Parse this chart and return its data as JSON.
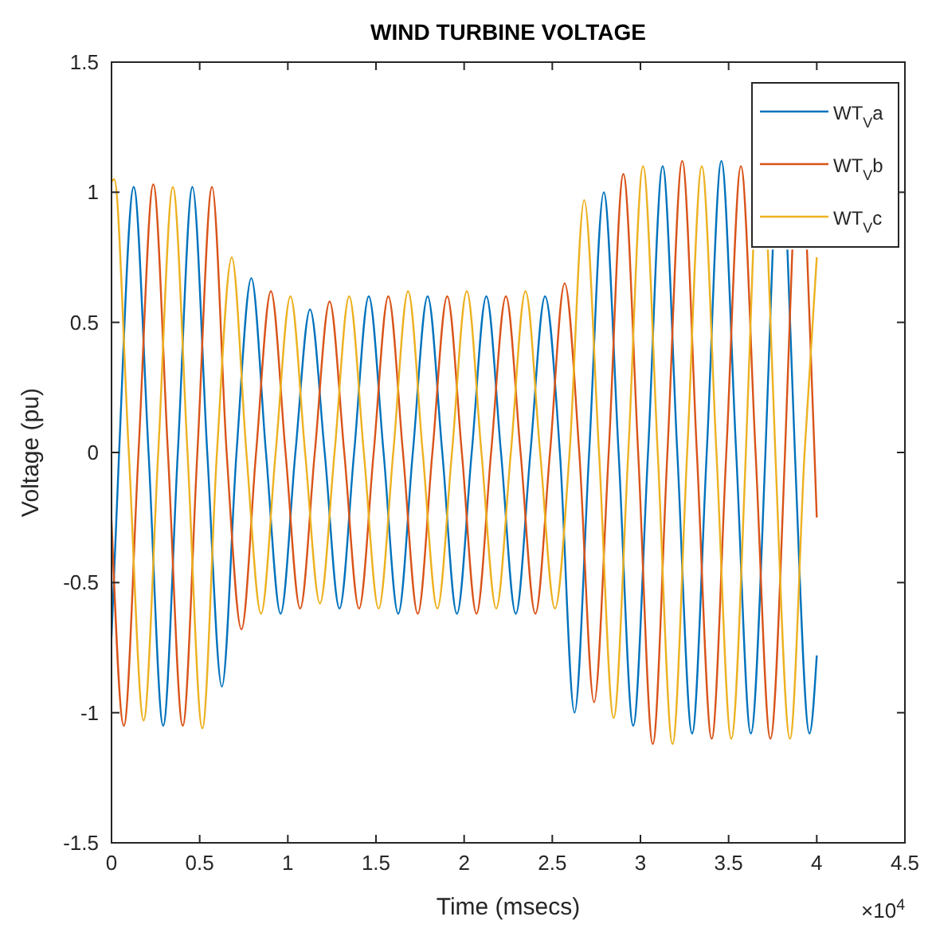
{
  "chart_data": {
    "type": "line",
    "title": "WIND TURBINE VOLTAGE",
    "xlabel": "Time (msecs)",
    "ylabel": "Voltage (pu)",
    "annotations": [
      "×10$^{4}$"
    ],
    "xlim": [
      0,
      4.5
    ],
    "ylim": [
      -1.5,
      1.5
    ],
    "xticks": [
      0,
      0.5,
      1,
      1.5,
      2,
      2.5,
      3,
      3.5,
      4,
      4.5
    ],
    "yticks": [
      -1.5,
      -1,
      -0.5,
      0,
      0.5,
      1,
      1.5
    ],
    "grid": false,
    "legend": "top right",
    "line_style": "solid",
    "marker": "none",
    "series": [
      {
        "name": "WT$_{V}$a",
        "color": "#0072bd",
        "x": [
          0,
          0.043,
          0.126,
          0.21,
          0.293,
          0.376,
          0.459,
          0.543,
          0.626,
          0.709,
          0.793,
          0.876,
          0.959,
          1.043,
          1.126,
          1.209,
          1.293,
          1.376,
          1.459,
          1.543,
          1.626,
          1.709,
          1.793,
          1.876,
          1.959,
          2.043,
          2.126,
          2.209,
          2.293,
          2.376,
          2.459,
          2.543,
          2.626,
          2.709,
          2.792,
          2.876,
          2.959,
          3.043,
          3.126,
          3.209,
          3.293,
          3.376,
          3.459,
          3.543,
          3.626,
          3.709,
          3.7505,
          3.792,
          3.8335,
          3.876,
          3.959,
          4.0
        ],
        "values": [
          -0.71,
          0,
          1.02,
          0,
          -1.05,
          0,
          1.02,
          0,
          -0.9,
          0,
          0.67,
          0,
          -0.62,
          0,
          0.55,
          0,
          -0.6,
          0,
          0.6,
          0,
          -0.62,
          0,
          0.6,
          0,
          -0.62,
          0,
          0.6,
          0,
          -0.62,
          0,
          0.6,
          0,
          -1.0,
          0,
          1.0,
          0,
          -1.05,
          0,
          1.1,
          0,
          -1.08,
          0,
          1.12,
          0,
          -1.08,
          0,
          0.78,
          null,
          0.78,
          0,
          -1.08,
          -0.78
        ]
      },
      {
        "name": "WT$_{V}$b",
        "color": "#d95319",
        "x": [
          0,
          0.07,
          0.153,
          0.237,
          0.32,
          0.404,
          0.487,
          0.57,
          0.653,
          0.737,
          0.82,
          0.904,
          0.987,
          1.07,
          1.153,
          1.237,
          1.32,
          1.404,
          1.487,
          1.57,
          1.653,
          1.737,
          1.82,
          1.904,
          1.987,
          2.07,
          2.153,
          2.237,
          2.32,
          2.404,
          2.487,
          2.57,
          2.653,
          2.737,
          2.82,
          2.903,
          2.987,
          3.07,
          3.153,
          3.237,
          3.32,
          3.404,
          3.487,
          3.57,
          3.653,
          3.737,
          3.82,
          3.8615,
          3.903,
          3.9445,
          3.987,
          4.0
        ],
        "values": [
          -0.26,
          -1.05,
          0,
          1.03,
          0,
          -1.05,
          0,
          1.02,
          0,
          -0.68,
          0,
          0.62,
          0,
          -0.6,
          0,
          0.58,
          0,
          -0.6,
          0,
          0.6,
          0,
          -0.62,
          0,
          0.6,
          0,
          -0.62,
          0,
          0.6,
          0,
          -0.62,
          0,
          0.65,
          0,
          -0.96,
          0,
          1.07,
          0,
          -1.12,
          0,
          1.12,
          0,
          -1.1,
          0,
          1.1,
          0,
          -1.1,
          0,
          0.78,
          null,
          0.78,
          0,
          -0.25
        ]
      },
      {
        "name": "WT$_{V}$c",
        "color": "#edb120",
        "x": [
          0,
          0.015,
          0.098,
          0.182,
          0.265,
          0.348,
          0.431,
          0.515,
          0.598,
          0.682,
          0.765,
          0.848,
          0.931,
          1.015,
          1.098,
          1.182,
          1.265,
          1.348,
          1.431,
          1.515,
          1.598,
          1.682,
          1.765,
          1.848,
          1.931,
          2.015,
          2.098,
          2.182,
          2.265,
          2.348,
          2.431,
          2.515,
          2.598,
          2.681,
          2.765,
          2.848,
          2.931,
          3.015,
          3.098,
          3.182,
          3.265,
          3.348,
          3.431,
          3.515,
          3.598,
          3.6395,
          3.681,
          3.7225,
          3.765,
          3.848,
          3.931,
          4.0
        ],
        "values": [
          1.04,
          1.05,
          0,
          -1.03,
          0,
          1.02,
          0,
          -1.06,
          0,
          0.75,
          0,
          -0.62,
          0,
          0.6,
          0,
          -0.58,
          0,
          0.6,
          0,
          -0.6,
          0,
          0.62,
          0,
          -0.6,
          0,
          0.62,
          0,
          -0.6,
          0,
          0.62,
          0,
          -0.6,
          0,
          0.97,
          0,
          -1.02,
          0,
          1.1,
          0,
          -1.12,
          0,
          1.1,
          0,
          -1.1,
          0,
          0.78,
          null,
          0.78,
          0,
          -1.1,
          0,
          0.75
        ]
      }
    ]
  }
}
